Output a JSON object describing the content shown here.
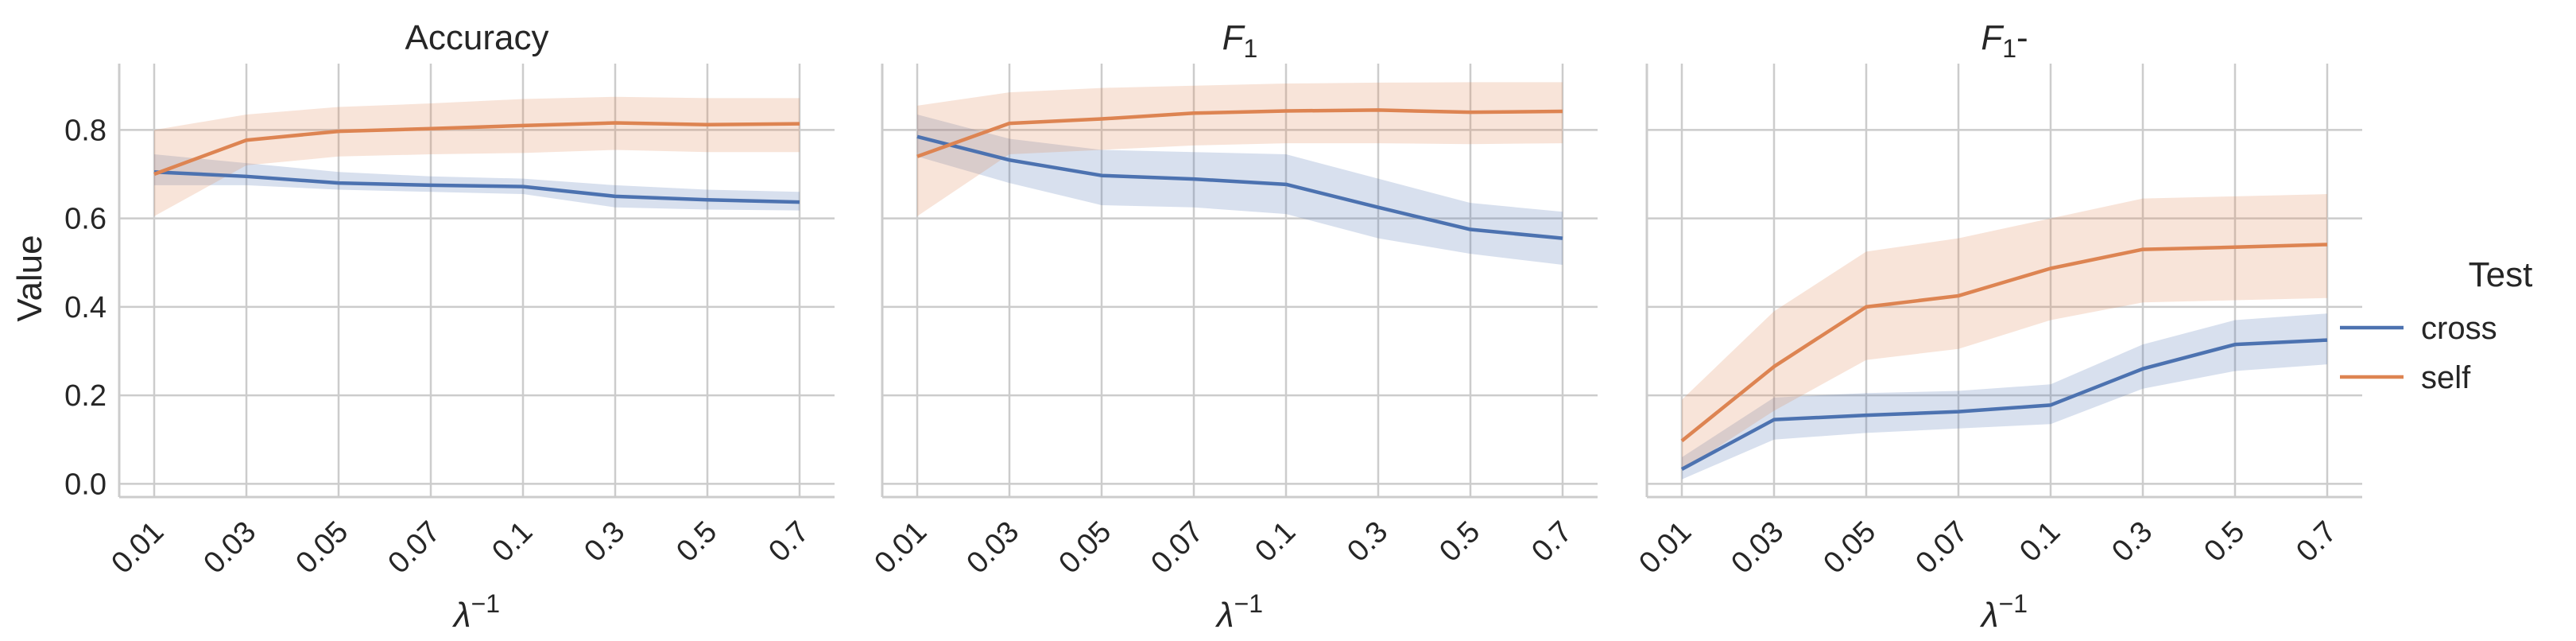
{
  "chart_data": {
    "type": "line",
    "ylabel": "Value",
    "xlabel_base": "λ",
    "xlabel_sup": "−1",
    "categories": [
      "0.01",
      "0.03",
      "0.05",
      "0.07",
      "0.1",
      "0.3",
      "0.5",
      "0.7"
    ],
    "ylim": [
      -0.03,
      0.95
    ],
    "yticks": [
      0.0,
      0.2,
      0.4,
      0.6,
      0.8
    ],
    "ytick_labels": [
      "0.0",
      "0.2",
      "0.4",
      "0.6",
      "0.8"
    ],
    "grid": true,
    "colors": {
      "cross": "#4c72b0",
      "self": "#dd8452",
      "grid": "#cccccc",
      "spine": "#cccccc"
    },
    "legend": {
      "title": "Test",
      "placement": "right",
      "entries": [
        "cross",
        "self"
      ]
    },
    "panels": [
      {
        "title": "Accuracy",
        "series": [
          {
            "name": "cross",
            "values": [
              0.705,
              0.695,
              0.68,
              0.675,
              0.672,
              0.65,
              0.642,
              0.637
            ],
            "lower": [
              0.675,
              0.675,
              0.665,
              0.66,
              0.655,
              0.625,
              0.62,
              0.618
            ],
            "upper": [
              0.745,
              0.725,
              0.705,
              0.695,
              0.69,
              0.675,
              0.665,
              0.66
            ]
          },
          {
            "name": "self",
            "values": [
              0.7,
              0.777,
              0.797,
              0.803,
              0.81,
              0.816,
              0.812,
              0.814
            ],
            "lower": [
              0.605,
              0.72,
              0.74,
              0.745,
              0.748,
              0.755,
              0.75,
              0.75
            ],
            "upper": [
              0.8,
              0.835,
              0.852,
              0.86,
              0.87,
              0.875,
              0.872,
              0.872
            ]
          }
        ]
      },
      {
        "title_base": "F",
        "title_sub": "1",
        "series": [
          {
            "name": "cross",
            "values": [
              0.785,
              0.732,
              0.697,
              0.689,
              0.677,
              0.625,
              0.575,
              0.555
            ],
            "lower": [
              0.74,
              0.68,
              0.63,
              0.625,
              0.61,
              0.555,
              0.52,
              0.495
            ],
            "upper": [
              0.835,
              0.78,
              0.755,
              0.75,
              0.745,
              0.69,
              0.635,
              0.615
            ]
          },
          {
            "name": "self",
            "values": [
              0.74,
              0.815,
              0.825,
              0.838,
              0.843,
              0.845,
              0.84,
              0.842
            ],
            "lower": [
              0.605,
              0.745,
              0.755,
              0.765,
              0.77,
              0.77,
              0.768,
              0.77
            ],
            "upper": [
              0.855,
              0.885,
              0.895,
              0.9,
              0.905,
              0.907,
              0.908,
              0.908
            ]
          }
        ]
      },
      {
        "title_base": "F",
        "title_sub": "1",
        "title_suffix": "-",
        "series": [
          {
            "name": "cross",
            "values": [
              0.033,
              0.145,
              0.155,
              0.163,
              0.178,
              0.26,
              0.315,
              0.325
            ],
            "lower": [
              0.01,
              0.1,
              0.115,
              0.125,
              0.135,
              0.215,
              0.255,
              0.27
            ],
            "upper": [
              0.06,
              0.195,
              0.205,
              0.21,
              0.225,
              0.315,
              0.37,
              0.385
            ]
          },
          {
            "name": "self",
            "values": [
              0.097,
              0.265,
              0.4,
              0.425,
              0.487,
              0.53,
              0.535,
              0.541
            ],
            "lower": [
              0.03,
              0.165,
              0.28,
              0.305,
              0.37,
              0.41,
              0.415,
              0.42
            ],
            "upper": [
              0.19,
              0.39,
              0.525,
              0.555,
              0.6,
              0.645,
              0.65,
              0.655
            ]
          }
        ]
      }
    ]
  }
}
